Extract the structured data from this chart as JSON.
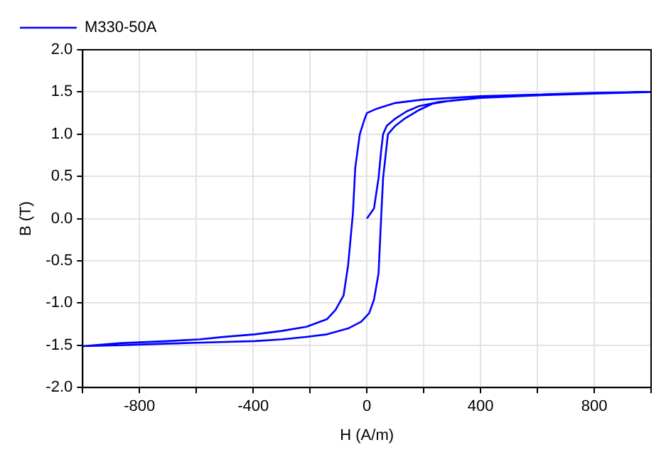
{
  "chart_data": {
    "type": "line",
    "xlabel": "H (A/m)",
    "ylabel": "B (T)",
    "series": [
      {
        "name": "M330-50A",
        "color": "#0000ff",
        "x": [
          0,
          25,
          41,
          50,
          57,
          70,
          98,
          140,
          181,
          250,
          400,
          600,
          800,
          1000,
          800,
          600,
          400,
          197,
          100,
          33,
          0,
          -8,
          -25,
          -41,
          -49,
          -66,
          -82,
          -110,
          -140,
          -213,
          -300,
          -394,
          -500,
          -591,
          -700,
          -870,
          -1000,
          -870,
          -700,
          -600,
          -394,
          -300,
          -213,
          -140,
          -66,
          -20,
          8,
          25,
          41,
          50,
          57,
          74,
          100,
          131,
          180,
          230,
          300,
          400,
          600,
          800,
          1000
        ],
        "values": [
          0,
          0.12,
          0.48,
          0.8,
          1.0,
          1.1,
          1.18,
          1.27,
          1.33,
          1.38,
          1.43,
          1.46,
          1.48,
          1.5,
          1.49,
          1.47,
          1.45,
          1.41,
          1.37,
          1.3,
          1.25,
          1.18,
          1.0,
          0.6,
          0.07,
          -0.55,
          -0.91,
          -1.08,
          -1.19,
          -1.28,
          -1.33,
          -1.37,
          -1.4,
          -1.43,
          -1.45,
          -1.475,
          -1.51,
          -1.5,
          -1.48,
          -1.47,
          -1.45,
          -1.43,
          -1.4,
          -1.37,
          -1.3,
          -1.22,
          -1.12,
          -0.96,
          -0.65,
          0.0,
          0.48,
          1.0,
          1.1,
          1.18,
          1.28,
          1.36,
          1.4,
          1.43,
          1.46,
          1.48,
          1.5
        ]
      }
    ],
    "xlim": [
      -1000,
      1000
    ],
    "xticks": [
      {
        "value": -1000,
        "label": null
      },
      -800,
      {
        "value": -600,
        "label": null
      },
      -400,
      {
        "value": -200,
        "label": null
      },
      0,
      {
        "value": 200,
        "label": null
      },
      400,
      {
        "value": 600,
        "label": null
      },
      800,
      {
        "value": 1000,
        "label": null
      }
    ],
    "ylim": [
      -2,
      2
    ],
    "yticks": [
      {
        "value": -2,
        "label": "-2.0"
      },
      {
        "value": -1.5,
        "label": "-1.5"
      },
      {
        "value": -1,
        "label": "-1.0"
      },
      {
        "value": -0.5,
        "label": "-0.5"
      },
      {
        "value": 0,
        "label": "0.0"
      },
      {
        "value": 0.5,
        "label": "0.5"
      },
      {
        "value": 1,
        "label": "1.0"
      },
      {
        "value": 1.5,
        "label": "1.5"
      },
      {
        "value": 2,
        "label": "2.0"
      }
    ],
    "grid": true,
    "legend": "top left",
    "marker": "none",
    "line_style": "solid"
  }
}
